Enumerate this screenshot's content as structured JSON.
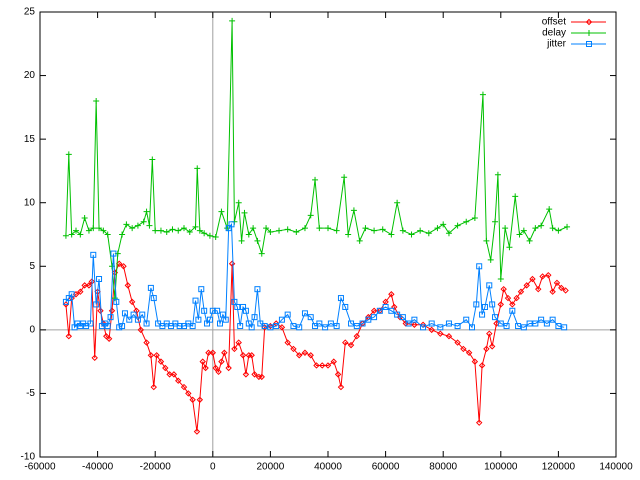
{
  "chart_data": {
    "type": "line",
    "xlim": [
      -60000,
      140000
    ],
    "ylim": [
      -10,
      25
    ],
    "xticks": [
      -60000,
      -40000,
      -20000,
      0,
      20000,
      40000,
      60000,
      80000,
      100000,
      120000,
      140000
    ],
    "yticks": [
      -10,
      -5,
      0,
      5,
      10,
      15,
      20,
      25
    ],
    "zero_axis": true,
    "legend": "top-right",
    "series": [
      {
        "name": "offset",
        "color": "#ff0000",
        "marker": "diamond",
        "x": [
          -51000,
          -50000,
          -49000,
          -47500,
          -46000,
          -44500,
          -43000,
          -42000,
          -41000,
          -40000,
          -39000,
          -38000,
          -37000,
          -36000,
          -35000,
          -34000,
          -32500,
          -31000,
          -29500,
          -28000,
          -26500,
          -25000,
          -23000,
          -21500,
          -20500,
          -19500,
          -18000,
          -16500,
          -15000,
          -13500,
          -12000,
          -10000,
          -8500,
          -7000,
          -5500,
          -4500,
          -3500,
          -2500,
          -1500,
          0,
          1000,
          2000,
          3000,
          4000,
          5500,
          6700,
          7500,
          9000,
          10500,
          11500,
          12500,
          13500,
          14500,
          16000,
          17000,
          18000,
          20000,
          22000,
          24000,
          26000,
          28000,
          30000,
          32000,
          34000,
          36000,
          38000,
          40000,
          42000,
          43500,
          44500,
          46000,
          48000,
          50000,
          52000,
          54000,
          56000,
          58000,
          60000,
          62000,
          63000,
          65000,
          67000,
          70000,
          73000,
          76000,
          79000,
          82000,
          85000,
          87000,
          89000,
          91000,
          92500,
          93500,
          95000,
          96000,
          97000,
          98500,
          100000,
          101000,
          102500,
          104000,
          105500,
          107000,
          109000,
          111000,
          113000,
          114500,
          116500,
          118000,
          119500,
          121000,
          122500
        ],
        "values": [
          2.0,
          -0.5,
          2.5,
          2.8,
          3.0,
          3.5,
          3.5,
          3.8,
          -2.2,
          3.0,
          1.5,
          0.5,
          -0.5,
          -0.7,
          1.5,
          4.5,
          5.2,
          5.0,
          3.5,
          2.2,
          1.5,
          0.0,
          -1.0,
          -2.0,
          -4.5,
          -2.0,
          -2.5,
          -3.0,
          -3.5,
          -3.5,
          -4.0,
          -4.5,
          -5.0,
          -5.5,
          -8.0,
          -5.5,
          -2.5,
          -3.0,
          -1.8,
          -1.8,
          -3.0,
          -3.3,
          -2.5,
          -1.8,
          -3.0,
          5.2,
          -1.5,
          -1.0,
          -2.0,
          -3.5,
          -2.0,
          -2.0,
          -3.5,
          -3.7,
          -3.7,
          0.2,
          0.3,
          0.5,
          0.2,
          -1.0,
          -1.5,
          -2.0,
          -1.8,
          -2.0,
          -2.8,
          -2.8,
          -2.8,
          -2.5,
          -3.5,
          -4.5,
          -1.0,
          -1.2,
          -0.5,
          0.5,
          1.0,
          1.5,
          1.5,
          2.2,
          2.8,
          1.8,
          1.0,
          0.5,
          0.4,
          0.4,
          0.0,
          -0.3,
          -0.5,
          -1.0,
          -1.5,
          -1.8,
          -2.5,
          -7.3,
          -2.8,
          -1.5,
          -0.3,
          -1.3,
          0.5,
          2.0,
          3.2,
          2.5,
          2.0,
          2.5,
          3.0,
          3.5,
          4.0,
          3.2,
          4.2,
          4.3,
          3.0,
          3.7,
          3.3,
          3.1
        ]
      },
      {
        "name": "delay",
        "color": "#00c000",
        "marker": "plus",
        "x": [
          -51000,
          -50000,
          -49000,
          -47500,
          -46000,
          -44500,
          -43000,
          -41500,
          -40500,
          -39500,
          -38000,
          -36500,
          -35000,
          -34000,
          -33000,
          -31500,
          -30000,
          -28000,
          -26000,
          -24000,
          -23000,
          -22000,
          -21000,
          -20000,
          -18000,
          -16000,
          -14000,
          -12000,
          -10000,
          -8000,
          -6000,
          -5400,
          -4500,
          -3000,
          -1000,
          1000,
          3000,
          5000,
          6700,
          7500,
          9000,
          10000,
          11000,
          12500,
          14000,
          15500,
          17000,
          18500,
          20000,
          23000,
          26000,
          29000,
          32000,
          34000,
          35500,
          37000,
          40000,
          43000,
          45600,
          47000,
          49000,
          51000,
          53000,
          56000,
          59000,
          62000,
          64000,
          66000,
          69000,
          72000,
          75000,
          78000,
          80000,
          82000,
          85000,
          88000,
          91000,
          93800,
          95000,
          96500,
          98000,
          99000,
          100000,
          101500,
          103000,
          105000,
          106500,
          108000,
          110000,
          112000,
          114000,
          116800,
          118000,
          120000,
          123000
        ],
        "values": [
          7.4,
          13.8,
          7.5,
          7.8,
          7.5,
          8.8,
          7.8,
          8.0,
          18.0,
          8.0,
          7.8,
          7.5,
          5.0,
          2.5,
          6.0,
          7.5,
          8.3,
          8.0,
          8.2,
          8.5,
          9.3,
          8.2,
          13.4,
          7.8,
          7.8,
          7.7,
          7.9,
          7.8,
          8.0,
          7.7,
          8.1,
          12.7,
          7.8,
          7.6,
          7.4,
          7.3,
          9.3,
          8.0,
          24.3,
          8.5,
          10.0,
          7.0,
          9.2,
          7.5,
          8.0,
          7.0,
          6.0,
          8.0,
          7.7,
          7.8,
          7.9,
          7.7,
          8.0,
          9.0,
          11.8,
          8.0,
          8.0,
          7.8,
          12.0,
          7.5,
          9.4,
          7.0,
          8.0,
          7.8,
          7.9,
          7.5,
          10.0,
          7.8,
          7.5,
          7.8,
          7.6,
          8.0,
          8.3,
          7.6,
          8.2,
          8.5,
          8.8,
          18.5,
          7.0,
          5.5,
          8.5,
          12.2,
          4.0,
          8.0,
          6.5,
          10.5,
          7.5,
          7.8,
          7.0,
          8.0,
          8.2,
          9.5,
          8.0,
          7.8,
          8.1
        ]
      },
      {
        "name": "jitter",
        "color": "#0080ff",
        "marker": "square",
        "x": [
          -51000,
          -50000,
          -49000,
          -48000,
          -47000,
          -46000,
          -45000,
          -44000,
          -42500,
          -41500,
          -40500,
          -39500,
          -38500,
          -37500,
          -36500,
          -35500,
          -34500,
          -33500,
          -32500,
          -31500,
          -30500,
          -29000,
          -27500,
          -26000,
          -24500,
          -23000,
          -21500,
          -20500,
          -19000,
          -17500,
          -16000,
          -14500,
          -13000,
          -11500,
          -10000,
          -8500,
          -7000,
          -6000,
          -5000,
          -4000,
          -3000,
          -2000,
          -1000,
          0,
          1500,
          2500,
          3500,
          4500,
          5500,
          6500,
          7500,
          8500,
          9500,
          10500,
          11500,
          12500,
          13500,
          14500,
          15500,
          16500,
          18000,
          20000,
          22000,
          24000,
          26000,
          28000,
          30000,
          32000,
          34000,
          35500,
          37000,
          39000,
          41000,
          43000,
          44500,
          46000,
          48000,
          50000,
          52000,
          54000,
          56000,
          58000,
          60000,
          62000,
          64000,
          66000,
          68000,
          70000,
          73000,
          76000,
          79000,
          82000,
          85000,
          88000,
          90000,
          91500,
          92500,
          93500,
          94500,
          96000,
          97000,
          98000,
          100000,
          102000,
          104000,
          106000,
          108000,
          110000,
          112000,
          114000,
          116000,
          118000,
          120000,
          122000
        ],
        "values": [
          2.2,
          2.5,
          2.8,
          0.2,
          0.5,
          0.3,
          0.5,
          0.3,
          0.5,
          5.9,
          2.0,
          4.0,
          0.3,
          0.5,
          0.3,
          1.0,
          6.0,
          2.2,
          0.2,
          0.3,
          1.3,
          0.8,
          1.2,
          0.8,
          1.2,
          0.5,
          3.3,
          2.5,
          0.5,
          0.3,
          0.5,
          0.3,
          0.5,
          0.3,
          0.3,
          0.5,
          0.3,
          2.3,
          0.8,
          3.2,
          1.5,
          0.5,
          0.8,
          1.5,
          1.5,
          0.5,
          1.2,
          0.8,
          8.0,
          8.3,
          2.2,
          1.8,
          0.3,
          1.8,
          1.5,
          0.5,
          0.2,
          1.0,
          3.2,
          0.5,
          0.3,
          0.2,
          0.3,
          0.8,
          1.2,
          0.3,
          0.2,
          1.3,
          1.0,
          0.3,
          0.5,
          0.2,
          0.5,
          0.3,
          2.5,
          1.8,
          0.5,
          0.3,
          0.5,
          0.8,
          1.0,
          1.5,
          1.8,
          1.5,
          1.2,
          1.0,
          0.5,
          0.8,
          0.2,
          0.5,
          0.2,
          0.5,
          0.3,
          0.8,
          0.2,
          2.0,
          5.0,
          1.2,
          1.8,
          3.5,
          2.0,
          1.0,
          0.5,
          0.3,
          1.5,
          0.3,
          0.2,
          0.5,
          0.5,
          0.8,
          0.5,
          0.8,
          0.3,
          0.2
        ]
      }
    ]
  }
}
